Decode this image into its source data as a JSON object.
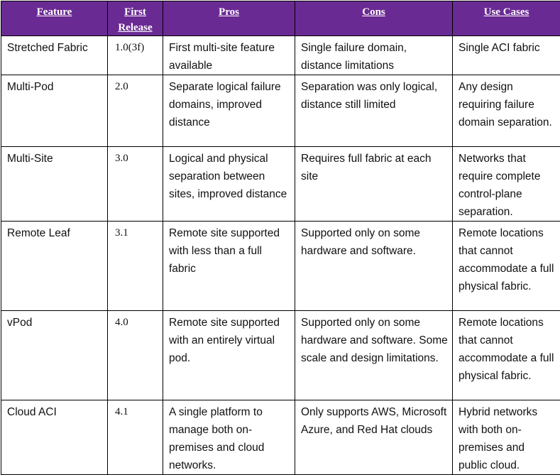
{
  "table": {
    "headers": {
      "feature": "Feature",
      "first_release": "First Release",
      "pros": "Pros",
      "cons": "Cons",
      "use_cases": "Use Cases"
    },
    "rows": [
      {
        "feature": "Stretched Fabric",
        "release": "1.0(3f)",
        "pros": "First multi-site feature available",
        "cons": "Single failure domain, distance limitations",
        "use_cases": "Single ACI fabric"
      },
      {
        "feature": "Multi-Pod",
        "release": "2.0",
        "pros": "Separate logical failure domains, improved distance",
        "cons": "Separation was only logical, distance still limited",
        "use_cases": "Any design requiring failure domain separation."
      },
      {
        "feature": "Multi-Site",
        "release": "3.0",
        "pros": "Logical and physical separation between sites, improved distance",
        "cons": "Requires full fabric at each site",
        "use_cases": "Networks that require complete control-plane separation."
      },
      {
        "feature": "Remote Leaf",
        "release": "3.1",
        "pros": "Remote site supported with less than a full fabric",
        "cons": "Supported only on some hardware and software.",
        "use_cases": "Remote locations that cannot accommodate a full physical fabric."
      },
      {
        "feature": "vPod",
        "release": "4.0",
        "pros": "Remote site supported with an entirely virtual pod.",
        "cons": "Supported only on some hardware and software.  Some scale and design limitations.",
        "use_cases": "Remote locations that cannot accommodate a full physical fabric."
      },
      {
        "feature": "Cloud ACI",
        "release": "4.1",
        "pros": "A single platform to manage both on-premises and cloud networks.",
        "cons": "Only supports AWS, Microsoft Azure, and Red Hat clouds",
        "use_cases": "Hybrid networks with both on-premises and public cloud."
      }
    ]
  }
}
